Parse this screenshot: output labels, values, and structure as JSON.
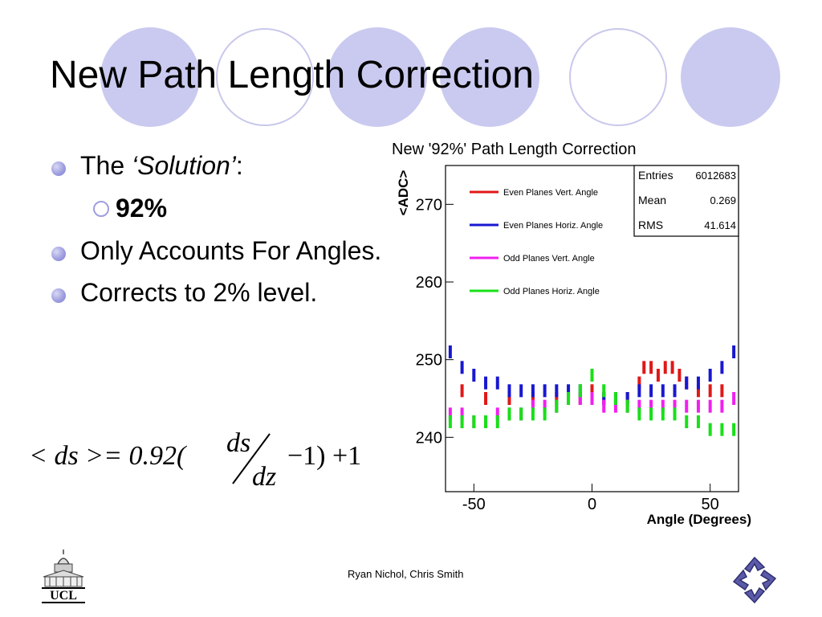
{
  "slide": {
    "title": "New Path Length Correction",
    "bullets": [
      {
        "prefix": "The ",
        "emph": "‘Solution’",
        "suffix": ":"
      },
      {
        "text": "Only Accounts For Angles."
      },
      {
        "text": "Corrects to 2% level."
      }
    ],
    "sub_bullet": "92%",
    "footer": "Ryan Nichol, Chris Smith",
    "logo_text": "UCL",
    "formula": {
      "lhs": "< ds >= 0.92(",
      "num": "ds",
      "den": "dz",
      "rhs": "−1) +1"
    }
  },
  "theme": {
    "circle_fill": "#cacaf0",
    "circle_outline": "#c8c8ec",
    "bullet_color": "#9f9fe0"
  },
  "chart_data": {
    "type": "scatter",
    "title": "New '92%' Path Length Correction",
    "xlabel": "Angle (Degrees)",
    "ylabel": "<ADC>",
    "xlim": [
      -62,
      62
    ],
    "ylim": [
      233,
      275
    ],
    "xticks": [
      -50,
      0,
      50
    ],
    "yticks": [
      240,
      250,
      260,
      270
    ],
    "stats": {
      "entries_label": "Entries",
      "entries": "6012683",
      "mean_label": "Mean",
      "mean": "0.269",
      "rms_label": "RMS",
      "rms": "41.614"
    },
    "legend_position": "top-left",
    "series": [
      {
        "name": "Even Planes Vert. Angle",
        "color": "#e01818",
        "x": [
          -55,
          -45,
          -35,
          -25,
          -15,
          -5,
          0,
          5,
          15,
          20,
          22,
          25,
          28,
          31,
          34,
          37,
          40,
          45,
          50,
          55
        ],
        "y": [
          246,
          245,
          245,
          245,
          245,
          245,
          246,
          245,
          245,
          247,
          249,
          249,
          248,
          249,
          249,
          248,
          247,
          246,
          246,
          246
        ]
      },
      {
        "name": "Even Planes Horiz. Angle",
        "color": "#1818d0",
        "x": [
          -60,
          -55,
          -50,
          -45,
          -40,
          -35,
          -30,
          -25,
          -20,
          -15,
          -10,
          -5,
          0,
          5,
          10,
          15,
          20,
          25,
          30,
          35,
          40,
          45,
          50,
          55,
          60
        ],
        "y": [
          251,
          249,
          248,
          247,
          247,
          246,
          246,
          246,
          246,
          246,
          246,
          246,
          245,
          245,
          245,
          245,
          246,
          246,
          246,
          246,
          247,
          247,
          248,
          249,
          251
        ]
      },
      {
        "name": "Odd Planes Vert. Angle",
        "color": "#f020f0",
        "x": [
          -60,
          -55,
          -50,
          -45,
          -40,
          -35,
          -30,
          -25,
          -20,
          -15,
          -10,
          -5,
          0,
          5,
          10,
          15,
          20,
          25,
          30,
          35,
          40,
          45,
          50,
          55,
          60
        ],
        "y": [
          243,
          243,
          242,
          242,
          243,
          243,
          243,
          244,
          244,
          244,
          245,
          245,
          245,
          244,
          244,
          244,
          244,
          244,
          244,
          244,
          244,
          244,
          244,
          244,
          245
        ]
      },
      {
        "name": "Odd Planes Horiz. Angle",
        "color": "#18e018",
        "x": [
          -60,
          -55,
          -50,
          -45,
          -40,
          -35,
          -30,
          -25,
          -20,
          -15,
          -10,
          -5,
          0,
          5,
          10,
          15,
          20,
          25,
          30,
          35,
          40,
          45,
          50,
          55,
          60
        ],
        "y": [
          242,
          242,
          242,
          242,
          242,
          243,
          243,
          243,
          243,
          244,
          245,
          246,
          248,
          246,
          245,
          244,
          243,
          243,
          243,
          243,
          242,
          242,
          241,
          241,
          241
        ]
      }
    ]
  }
}
